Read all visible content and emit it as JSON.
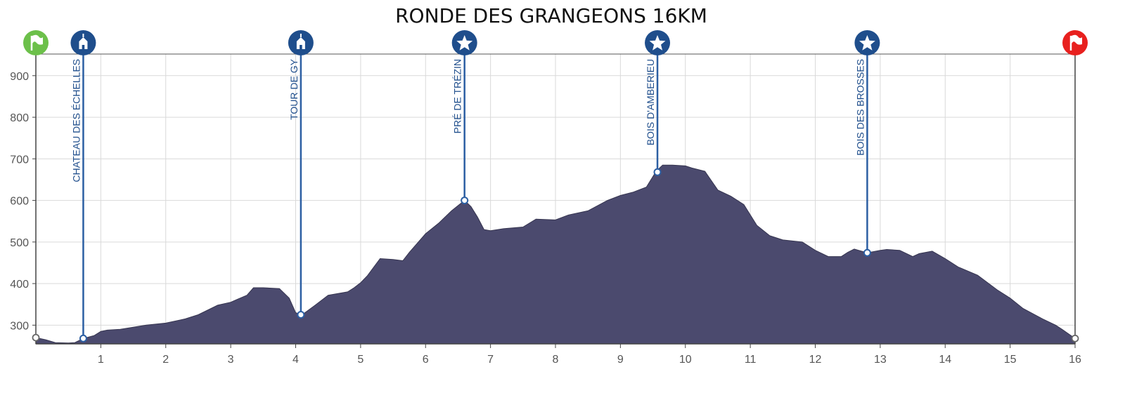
{
  "chart_data": {
    "type": "area",
    "title": "RONDE DES GRANGEONS 16KM",
    "xlabel": "",
    "ylabel": "",
    "xlim": [
      0,
      16
    ],
    "ylim": [
      255,
      952
    ],
    "x_ticks": [
      1,
      2,
      3,
      4,
      5,
      6,
      7,
      8,
      9,
      10,
      11,
      12,
      13,
      14,
      15,
      16
    ],
    "y_ticks": [
      300,
      400,
      500,
      600,
      700,
      800,
      900
    ],
    "grid": true,
    "area_color": "#4b4a6e",
    "accent_color": "#1f4e8c",
    "start_flag_color": "#6cc04a",
    "finish_flag_color": "#e8201e",
    "series": [
      {
        "x": [
          0,
          0.15,
          0.3,
          0.5,
          0.6,
          0.73,
          0.9,
          1.0,
          1.1,
          1.3,
          1.5,
          1.7,
          2.0,
          2.3,
          2.5,
          2.8,
          3.0,
          3.1,
          3.25,
          3.35,
          3.5,
          3.75,
          3.9,
          4.0,
          4.1,
          4.3,
          4.5,
          4.8,
          4.9,
          5.0,
          5.1,
          5.3,
          5.5,
          5.65,
          5.75,
          6.0,
          6.2,
          6.4,
          6.6,
          6.7,
          6.8,
          6.9,
          7.0,
          7.2,
          7.5,
          7.7,
          8.0,
          8.2,
          8.5,
          8.8,
          9.0,
          9.2,
          9.4,
          9.55,
          9.65,
          9.8,
          10.0,
          10.1,
          10.3,
          10.5,
          10.7,
          10.9,
          11.1,
          11.3,
          11.5,
          11.8,
          12.0,
          12.2,
          12.4,
          12.5,
          12.6,
          12.8,
          13.0,
          13.1,
          13.3,
          13.5,
          13.6,
          13.8,
          14.0,
          14.2,
          14.5,
          14.8,
          15.0,
          15.2,
          15.5,
          15.7,
          15.8,
          16.0
        ],
        "y": [
          270,
          265,
          258,
          257,
          258,
          268,
          275,
          285,
          288,
          290,
          295,
          300,
          305,
          315,
          325,
          348,
          355,
          362,
          372,
          390,
          390,
          388,
          365,
          330,
          325,
          348,
          372,
          380,
          390,
          402,
          418,
          460,
          458,
          455,
          475,
          520,
          545,
          575,
          600,
          585,
          560,
          530,
          527,
          532,
          536,
          555,
          553,
          565,
          575,
          600,
          612,
          620,
          632,
          670,
          685,
          685,
          683,
          678,
          670,
          625,
          610,
          590,
          540,
          515,
          505,
          500,
          480,
          465,
          465,
          475,
          483,
          474,
          480,
          482,
          480,
          465,
          472,
          478,
          460,
          440,
          420,
          385,
          365,
          340,
          315,
          300,
          290,
          268
        ]
      }
    ],
    "waypoints": [
      {
        "x": 0.73,
        "y": 268,
        "label": "CHATEAU DES ÉCHELLES",
        "icon": "chateau-icon"
      },
      {
        "x": 4.08,
        "y": 325,
        "label": "TOUR DE GY",
        "icon": "tower-icon"
      },
      {
        "x": 6.6,
        "y": 600,
        "label": "PRÉ DE TRÉZIN",
        "icon": "star-icon"
      },
      {
        "x": 9.57,
        "y": 668,
        "label": "BOIS D'AMBERIEU",
        "icon": "star-icon"
      },
      {
        "x": 12.8,
        "y": 474,
        "label": "BOIS DES BROSSES",
        "icon": "star-icon"
      }
    ],
    "start": {
      "x": 0,
      "y": 270,
      "icon": "start-flag-icon"
    },
    "finish": {
      "x": 16,
      "y": 268,
      "icon": "finish-flag-icon"
    }
  }
}
